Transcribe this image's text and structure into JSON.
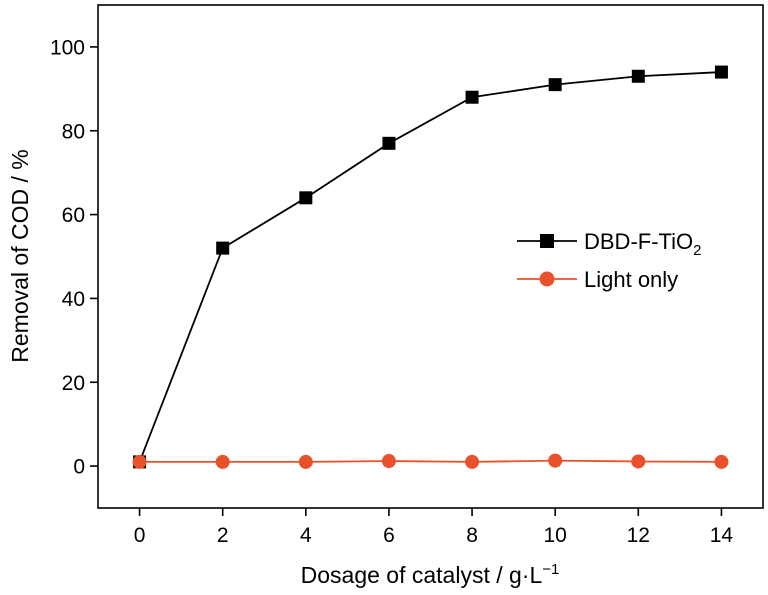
{
  "chart_data": {
    "type": "line",
    "title": "",
    "xlabel": "Dosage of catalyst / g·L",
    "xlabel_superscript": "−1",
    "ylabel": "Removal of COD / %",
    "x": [
      0,
      2,
      4,
      6,
      8,
      10,
      12,
      14
    ],
    "xlim": [
      -1,
      15
    ],
    "ylim": [
      -10,
      110
    ],
    "xticks": [
      0,
      2,
      4,
      6,
      8,
      10,
      12,
      14
    ],
    "yticks": [
      0,
      20,
      40,
      60,
      80,
      100
    ],
    "grid": false,
    "legend_position": "center-right",
    "series": [
      {
        "name": "DBD-F-TiO",
        "name_subscript": "2",
        "marker": "square",
        "color": "#000000",
        "values": [
          1,
          52,
          64,
          77,
          88,
          91,
          93,
          94
        ]
      },
      {
        "name": "Light only",
        "marker": "circle",
        "color": "#e8512a",
        "values": [
          1,
          1,
          1,
          1.2,
          1,
          1.3,
          1.1,
          1
        ]
      }
    ]
  }
}
